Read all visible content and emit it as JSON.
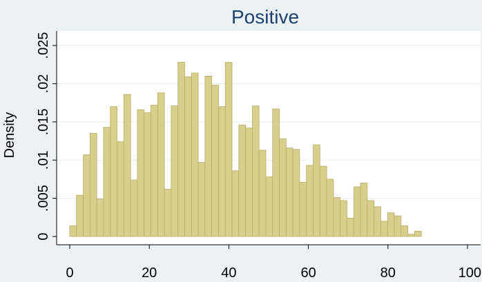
{
  "chart_data": {
    "type": "bar",
    "title": "Positive",
    "xlabel": "",
    "ylabel": "Density",
    "xlim": [
      0,
      100
    ],
    "ylim": [
      0,
      0.025
    ],
    "grid": true,
    "legend": "none",
    "bin_width": 1.7,
    "x_ticks": [
      0,
      20,
      40,
      60,
      80,
      100
    ],
    "x_tick_labels": [
      "0",
      "20",
      "40",
      "60",
      "80",
      "100"
    ],
    "y_ticks": [
      0,
      0.005,
      0.01,
      0.015,
      0.02,
      0.025
    ],
    "y_tick_labels": [
      "0",
      ".005",
      ".01",
      ".015",
      ".02",
      ".025"
    ],
    "bins_start": [
      0,
      1.7,
      3.4,
      5.1,
      6.8,
      8.5,
      10.2,
      11.9,
      13.6,
      15.3,
      17.0,
      18.7,
      20.4,
      22.1,
      23.8,
      25.5,
      27.2,
      28.9,
      30.6,
      32.3,
      34.0,
      35.7,
      37.4,
      39.1,
      40.8,
      42.5,
      44.2,
      45.9,
      47.6,
      49.3,
      51.0,
      52.7,
      54.4,
      56.1,
      57.8,
      59.5,
      61.2,
      62.9,
      64.6,
      66.3,
      68.0,
      69.7,
      71.4,
      73.1,
      74.8,
      76.5,
      78.2,
      79.9,
      81.6,
      83.3,
      85.0,
      86.7,
      88.4
    ],
    "values": [
      0.0014,
      0.0054,
      0.0107,
      0.0135,
      0.0049,
      0.0143,
      0.017,
      0.0124,
      0.0186,
      0.0074,
      0.0166,
      0.0162,
      0.0172,
      0.0188,
      0.0062,
      0.0171,
      0.0228,
      0.0209,
      0.0214,
      0.0097,
      0.021,
      0.0198,
      0.017,
      0.0228,
      0.0086,
      0.0146,
      0.0142,
      0.0171,
      0.0113,
      0.0078,
      0.0167,
      0.0128,
      0.0116,
      0.0114,
      0.0071,
      0.0093,
      0.012,
      0.0092,
      0.0075,
      0.0051,
      0.0047,
      0.0024,
      0.0065,
      0.007,
      0.0047,
      0.0039,
      0.002,
      0.0031,
      0.0027,
      0.0014,
      0.0003,
      0.0007,
      0
    ]
  }
}
